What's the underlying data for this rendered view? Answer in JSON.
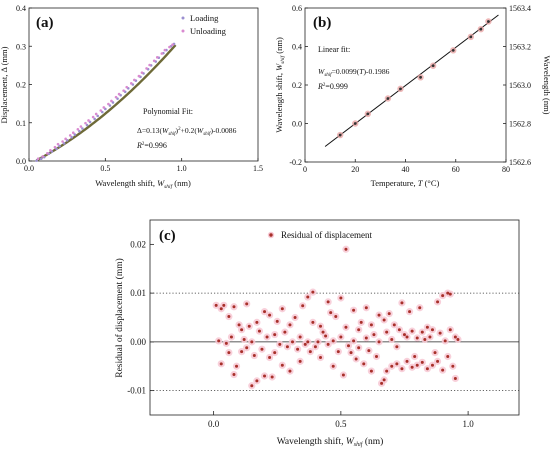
{
  "chart_data": [
    {
      "type": "scatter",
      "panel_label": "(a)",
      "xlabel_main": "Wavelength shift, ",
      "xlabel_var": "W",
      "xlabel_sub": "shif",
      "xlabel_unit": " (nm)",
      "ylabel": "Displacement, Δ (mm)",
      "xlim": [
        0.0,
        1.5
      ],
      "ylim": [
        0.0,
        0.4
      ],
      "x_ticks": [
        "0.0",
        "0.5",
        "1.0",
        "1.5"
      ],
      "y_ticks": [
        "0.0",
        "0.1",
        "0.2",
        "0.3",
        "0.4"
      ],
      "fit_title": "Polynomial Fit:",
      "fit_eq_part1": "Δ=0.13(",
      "fit_eq_var1": "W",
      "fit_eq_sub1": "shif",
      "fit_eq_part2": ")",
      "fit_eq_sup": "2",
      "fit_eq_part3": "+0.2(",
      "fit_eq_var2": "W",
      "fit_eq_sub2": "shif",
      "fit_eq_part4": ")-0.0086",
      "r2_var": "R",
      "r2_sup": "2",
      "r2_val": "=0.996",
      "fit": {
        "a2": 0.13,
        "a1": 0.2,
        "a0": -0.0086,
        "x_range": [
          0.05,
          0.96
        ]
      },
      "series": [
        {
          "name": "Loading",
          "color": "#9b8fd0",
          "points": [
            [
              0.05,
              0.001
            ],
            [
              0.08,
              0.006
            ],
            [
              0.1,
              0.01
            ],
            [
              0.13,
              0.019
            ],
            [
              0.15,
              0.025
            ],
            [
              0.18,
              0.032
            ],
            [
              0.2,
              0.039
            ],
            [
              0.23,
              0.046
            ],
            [
              0.25,
              0.054
            ],
            [
              0.28,
              0.062
            ],
            [
              0.3,
              0.069
            ],
            [
              0.33,
              0.078
            ],
            [
              0.35,
              0.085
            ],
            [
              0.38,
              0.094
            ],
            [
              0.4,
              0.102
            ],
            [
              0.43,
              0.11
            ],
            [
              0.45,
              0.118
            ],
            [
              0.48,
              0.128
            ],
            [
              0.5,
              0.136
            ],
            [
              0.53,
              0.145
            ],
            [
              0.55,
              0.153
            ],
            [
              0.58,
              0.163
            ],
            [
              0.6,
              0.172
            ],
            [
              0.63,
              0.181
            ],
            [
              0.65,
              0.19
            ],
            [
              0.68,
              0.2
            ],
            [
              0.7,
              0.21
            ],
            [
              0.73,
              0.22
            ],
            [
              0.75,
              0.229
            ],
            [
              0.78,
              0.24
            ],
            [
              0.8,
              0.25
            ],
            [
              0.83,
              0.26
            ],
            [
              0.85,
              0.27
            ],
            [
              0.88,
              0.282
            ],
            [
              0.9,
              0.29
            ],
            [
              0.93,
              0.3
            ],
            [
              0.95,
              0.306
            ]
          ]
        },
        {
          "name": "Unloading",
          "color": "#d98ad0",
          "points": [
            [
              0.06,
              0.006
            ],
            [
              0.09,
              0.012
            ],
            [
              0.12,
              0.02
            ],
            [
              0.14,
              0.028
            ],
            [
              0.17,
              0.036
            ],
            [
              0.19,
              0.044
            ],
            [
              0.22,
              0.051
            ],
            [
              0.24,
              0.058
            ],
            [
              0.27,
              0.067
            ],
            [
              0.29,
              0.074
            ],
            [
              0.32,
              0.083
            ],
            [
              0.34,
              0.09
            ],
            [
              0.37,
              0.099
            ],
            [
              0.39,
              0.106
            ],
            [
              0.42,
              0.115
            ],
            [
              0.44,
              0.123
            ],
            [
              0.47,
              0.132
            ],
            [
              0.49,
              0.14
            ],
            [
              0.52,
              0.149
            ],
            [
              0.54,
              0.157
            ],
            [
              0.57,
              0.167
            ],
            [
              0.59,
              0.175
            ],
            [
              0.62,
              0.184
            ],
            [
              0.64,
              0.193
            ],
            [
              0.67,
              0.203
            ],
            [
              0.69,
              0.212
            ],
            [
              0.72,
              0.222
            ],
            [
              0.74,
              0.231
            ],
            [
              0.77,
              0.242
            ],
            [
              0.79,
              0.251
            ],
            [
              0.82,
              0.262
            ],
            [
              0.84,
              0.271
            ],
            [
              0.87,
              0.281
            ],
            [
              0.89,
              0.29
            ],
            [
              0.92,
              0.298
            ],
            [
              0.94,
              0.304
            ]
          ]
        }
      ]
    },
    {
      "type": "scatter",
      "panel_label": "(b)",
      "xlabel_main": "Temperature, ",
      "xlabel_var": "T",
      "xlabel_unit": " (°C)",
      "ylabel_main": "Wavelength shift, ",
      "ylabel_var": "W",
      "ylabel_sub": "shif",
      "ylabel_unit": " (nm)",
      "ylabel_right": "Wavelength (nm)",
      "xlim": [
        0,
        80
      ],
      "ylim": [
        -0.2,
        0.6
      ],
      "ylim_right": [
        1562.6,
        1563.4
      ],
      "x_ticks": [
        "0",
        "20",
        "40",
        "60",
        "80"
      ],
      "y_ticks": [
        "-0.2",
        "0.0",
        "0.2",
        "0.4",
        "0.6"
      ],
      "y_ticks_right": [
        "1562.6",
        "1562.8",
        "1563.0",
        "1563.2",
        "1563.4"
      ],
      "fit_title": "Linear fit:",
      "fit_var": "W",
      "fit_sub": "shif",
      "fit_eq_part1": "=0.0099(",
      "fit_eq_var2": "T",
      "fit_eq_part2": ")-0.1986",
      "r2_var": "R",
      "r2_sup": "2",
      "r2_val": "=0.999",
      "fit": {
        "slope": 0.0099,
        "intercept": -0.1986,
        "x_range": [
          8,
          77
        ]
      },
      "series": [
        {
          "name": "",
          "color": "#e8a0a0",
          "points": [
            [
              14,
              -0.06
            ],
            [
              20,
              0.0
            ],
            [
              25,
              0.05
            ],
            [
              33,
              0.13
            ],
            [
              38,
              0.18
            ],
            [
              46,
              0.24
            ],
            [
              51,
              0.3
            ],
            [
              59,
              0.38
            ],
            [
              66,
              0.45
            ],
            [
              70,
              0.49
            ],
            [
              73,
              0.53
            ]
          ]
        }
      ]
    },
    {
      "type": "scatter",
      "panel_label": "(c)",
      "legend": "Residual of displacement",
      "xlabel_main": "Wavelength shift, ",
      "xlabel_var": "W",
      "xlabel_sub": "shif",
      "xlabel_unit": " (nm)",
      "ylabel": "Residual of displacement (mm)",
      "xlim": [
        -0.25,
        1.2
      ],
      "ylim": [
        -0.015,
        0.025
      ],
      "x_ticks": [
        "0.0",
        "0.5",
        "1.0"
      ],
      "x_tick_values": [
        0.0,
        0.5,
        1.0
      ],
      "y_ticks": [
        "-0.01",
        "0.00",
        "0.01",
        "0.02"
      ],
      "y_tick_values": [
        -0.01,
        0.0,
        0.01,
        0.02
      ],
      "reference_lines": [
        -0.01,
        0.0,
        0.01
      ],
      "series": [
        {
          "name": "Residual of displacement",
          "color": "#a8302a",
          "halo_color": "#f7c8d4",
          "points": [
            [
              0.01,
              0.0075
            ],
            [
              0.03,
              0.0068
            ],
            [
              0.04,
              0.0075
            ],
            [
              0.02,
              0.0002
            ],
            [
              0.05,
              -0.0003
            ],
            [
              0.03,
              -0.0045
            ],
            [
              0.06,
              0.0052
            ],
            [
              0.06,
              -0.0022
            ],
            [
              0.07,
              0.001
            ],
            [
              0.08,
              0.0072
            ],
            [
              0.08,
              -0.0067
            ],
            [
              0.09,
              -0.005
            ],
            [
              0.1,
              0.0035
            ],
            [
              0.11,
              0.0025
            ],
            [
              0.11,
              -0.002
            ],
            [
              0.12,
              0.0005
            ],
            [
              0.13,
              -0.0012
            ],
            [
              0.13,
              0.0078
            ],
            [
              0.14,
              0.0032
            ],
            [
              0.15,
              -0.009
            ],
            [
              0.15,
              0.0
            ],
            [
              0.16,
              -0.0028
            ],
            [
              0.17,
              0.004
            ],
            [
              0.17,
              -0.008
            ],
            [
              0.18,
              0.0022
            ],
            [
              0.19,
              -0.0015
            ],
            [
              0.2,
              -0.007
            ],
            [
              0.2,
              0.0062
            ],
            [
              0.21,
              0.001
            ],
            [
              0.22,
              -0.0032
            ],
            [
              0.22,
              0.0055
            ],
            [
              0.23,
              -0.0072
            ],
            [
              0.24,
              0.0015
            ],
            [
              0.24,
              -0.0022
            ],
            [
              0.25,
              0.0042
            ],
            [
              0.26,
              -0.0005
            ],
            [
              0.27,
              -0.0048
            ],
            [
              0.27,
              0.0068
            ],
            [
              0.28,
              0.002
            ],
            [
              0.29,
              -0.001
            ],
            [
              0.3,
              0.0035
            ],
            [
              0.3,
              -0.006
            ],
            [
              0.31,
              0.0
            ],
            [
              0.32,
              0.005
            ],
            [
              0.33,
              -0.0015
            ],
            [
              0.34,
              0.001
            ],
            [
              0.34,
              -0.004
            ],
            [
              0.35,
              0.0074
            ],
            [
              0.36,
              -0.0005
            ],
            [
              0.37,
              0.0092
            ],
            [
              0.37,
              0.0
            ],
            [
              0.38,
              -0.002
            ],
            [
              0.39,
              0.0102
            ],
            [
              0.39,
              0.004
            ],
            [
              0.4,
              -0.001
            ],
            [
              0.41,
              0.0
            ],
            [
              0.42,
              0.0032
            ],
            [
              0.42,
              -0.0032
            ],
            [
              0.43,
              0.002
            ],
            [
              0.44,
              0.0012
            ],
            [
              0.45,
              -0.0005
            ],
            [
              0.45,
              0.0082
            ],
            [
              0.46,
              0.006
            ],
            [
              0.47,
              0.0002
            ],
            [
              0.47,
              -0.005
            ],
            [
              0.48,
              0.0052
            ],
            [
              0.49,
              -0.002
            ],
            [
              0.5,
              0.009
            ],
            [
              0.5,
              0.001
            ],
            [
              0.51,
              -0.0068
            ],
            [
              0.52,
              0.019
            ],
            [
              0.52,
              0.003
            ],
            [
              0.53,
              -0.0008
            ],
            [
              0.54,
              -0.0022
            ],
            [
              0.55,
              0.0065
            ],
            [
              0.55,
              0.0002
            ],
            [
              0.56,
              -0.0035
            ],
            [
              0.57,
              0.0025
            ],
            [
              0.57,
              -0.0012
            ],
            [
              0.58,
              0.004
            ],
            [
              0.59,
              -0.0045
            ],
            [
              0.6,
              0.0008
            ],
            [
              0.6,
              0.007
            ],
            [
              0.61,
              -0.0018
            ],
            [
              0.62,
              0.0035
            ],
            [
              0.62,
              -0.006
            ],
            [
              0.63,
              0.0015
            ],
            [
              0.64,
              -0.003
            ],
            [
              0.65,
              0.0055
            ],
            [
              0.65,
              0.0
            ],
            [
              0.66,
              -0.0085
            ],
            [
              0.67,
              0.0045
            ],
            [
              0.67,
              -0.0078
            ],
            [
              0.68,
              0.002
            ],
            [
              0.68,
              -0.006
            ],
            [
              0.69,
              0.0058
            ],
            [
              0.7,
              0.0005
            ],
            [
              0.7,
              -0.005
            ],
            [
              0.71,
              0.0035
            ],
            [
              0.72,
              -0.001
            ],
            [
              0.72,
              -0.0045
            ],
            [
              0.73,
              0.0025
            ],
            [
              0.74,
              0.008
            ],
            [
              0.74,
              -0.0055
            ],
            [
              0.75,
              0.0015
            ],
            [
              0.76,
              -0.004
            ],
            [
              0.76,
              0.001
            ],
            [
              0.77,
              0.0062
            ],
            [
              0.78,
              -0.0052
            ],
            [
              0.78,
              0.0022
            ],
            [
              0.79,
              -0.003
            ],
            [
              0.8,
              0.0008
            ],
            [
              0.8,
              -0.0048
            ],
            [
              0.81,
              0.007
            ],
            [
              0.82,
              0.002
            ],
            [
              0.82,
              -0.0042
            ],
            [
              0.83,
              0.0005
            ],
            [
              0.84,
              -0.0055
            ],
            [
              0.84,
              0.003
            ],
            [
              0.85,
              0.001
            ],
            [
              0.86,
              -0.0048
            ],
            [
              0.86,
              0.0025
            ],
            [
              0.87,
              -0.0022
            ],
            [
              0.88,
              0.0082
            ],
            [
              0.88,
              -0.004
            ],
            [
              0.89,
              0.0018
            ],
            [
              0.9,
              0.0095
            ],
            [
              0.9,
              -0.0058
            ],
            [
              0.91,
              0.0002
            ],
            [
              0.92,
              0.01
            ],
            [
              0.92,
              -0.003
            ],
            [
              0.93,
              0.0025
            ],
            [
              0.93,
              0.0098
            ],
            [
              0.94,
              -0.005
            ],
            [
              0.95,
              0.001
            ],
            [
              0.95,
              -0.0075
            ],
            [
              0.96,
              0.0005
            ]
          ]
        }
      ]
    }
  ]
}
